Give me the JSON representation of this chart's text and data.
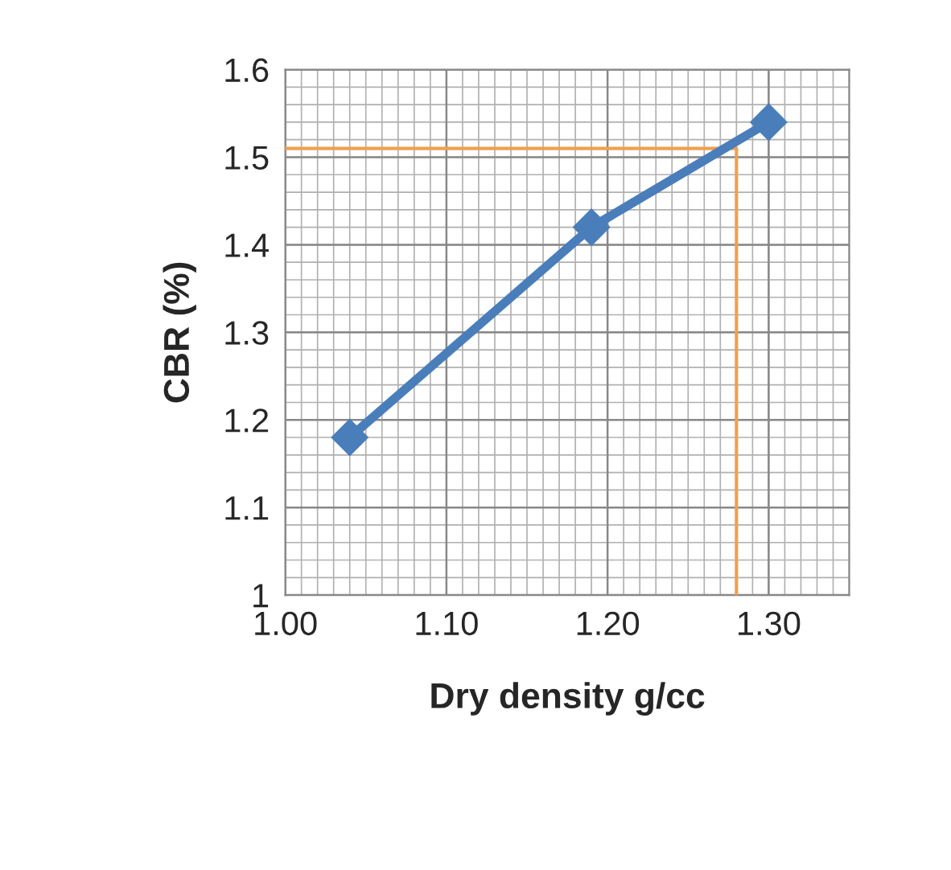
{
  "chart_data": {
    "type": "line",
    "xlabel": "Dry density g/cc",
    "ylabel": "CBR (%)",
    "series": [
      {
        "x": [
          1.04,
          1.19,
          1.3
        ],
        "values": [
          1.18,
          1.42,
          1.54
        ],
        "color": "#4a7ebb",
        "marker": "diamond",
        "line_style": "solid"
      },
      {
        "x": [
          1.0,
          1.28,
          1.28
        ],
        "values": [
          1.51,
          1.51,
          1.0
        ],
        "color": "#f0a050",
        "marker": "none",
        "line_style": "solid"
      }
    ],
    "xlim": [
      1.0,
      1.35
    ],
    "xticks": [
      {
        "value": 1.0,
        "label": "1.00"
      },
      {
        "value": 1.1,
        "label": "1.10"
      },
      {
        "value": 1.2,
        "label": "1.20"
      },
      {
        "value": 1.3,
        "label": "1.30"
      }
    ],
    "ylim": [
      1.0,
      1.6
    ],
    "yticks": [
      {
        "value": 1.0,
        "label": "1"
      },
      1.1,
      1.2,
      1.3,
      1.4,
      1.5,
      1.6
    ],
    "grid": true,
    "legend": false
  }
}
